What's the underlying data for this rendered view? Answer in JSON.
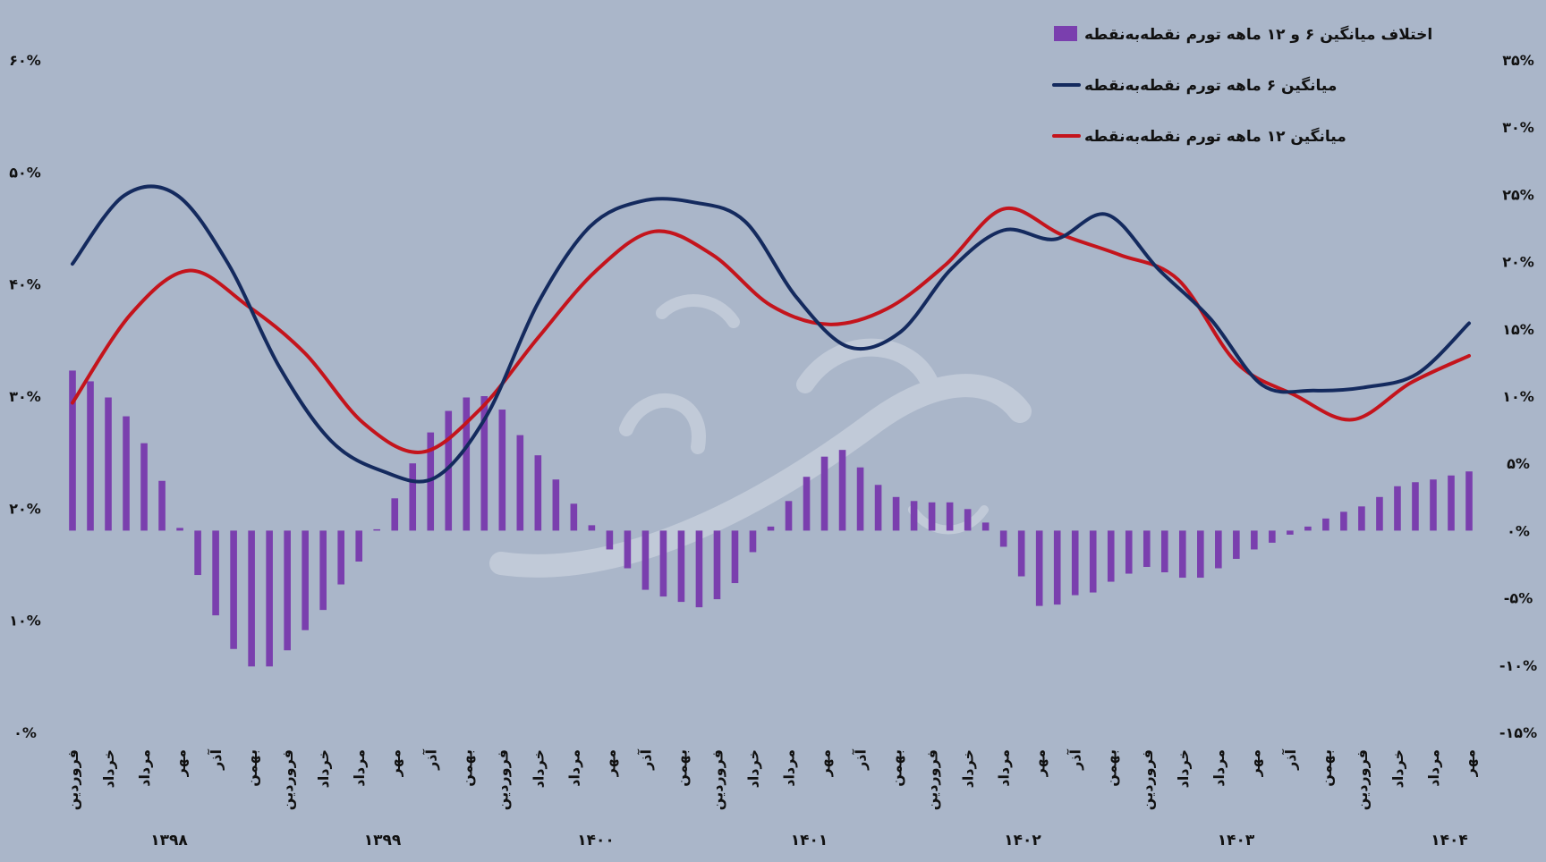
{
  "chart_data": {
    "type": "bar+line",
    "title": "",
    "legend_position": "top-right",
    "grid": false,
    "colors": {
      "background": "#aab6c9",
      "bar": "#7a3fae",
      "line_6m": "#142a5e",
      "line_12m": "#c4141c"
    },
    "legend": [
      {
        "key": "bar_diff",
        "label": "اختلاف میانگین ۶ و ۱۲ ماهه تورم نقطه‌به‌نقطه"
      },
      {
        "key": "line_6m",
        "label": "میانگین ۶ ماهه تورم نقطه‌به‌نقطه"
      },
      {
        "key": "line_12m",
        "label": "میانگین ۱۲ ماهه تورم نقطه‌به‌نقطه"
      }
    ],
    "left_axis": {
      "ticks": [
        "۰%",
        "۱۰%",
        "۲۰%",
        "۳۰%",
        "۴۰%",
        "۵۰%",
        "۶۰%"
      ],
      "range": [
        0,
        60
      ]
    },
    "right_axis": {
      "ticks": [
        "-۱۵%",
        "-۱۰%",
        "-۵%",
        "۰%",
        "۵%",
        "۱۰%",
        "۱۵%",
        "۲۰%",
        "۲۵%",
        "۳۰%",
        "۳۵%"
      ],
      "range": [
        -15,
        35
      ]
    },
    "month_labels": [
      "فروردین",
      "خرداد",
      "مرداد",
      "مهر",
      "آذر",
      "بهمن",
      "فروردین",
      "خرداد",
      "مرداد",
      "مهر",
      "آذر",
      "بهمن",
      "فروردین",
      "خرداد",
      "مرداد",
      "مهر",
      "آذر",
      "بهمن",
      "فروردین",
      "خرداد",
      "مرداد",
      "مهر",
      "آذر",
      "بهمن",
      "فروردین",
      "خرداد",
      "مرداد",
      "مهر",
      "آذر",
      "بهمن",
      "فروردین",
      "خرداد",
      "مرداد",
      "مهر",
      "آذر",
      "بهمن",
      "فروردین",
      "خرداد",
      "مرداد",
      "مهر"
    ],
    "year_labels": [
      "۱۳۹۸",
      "۱۳۹۹",
      "۱۴۰۰",
      "۱۴۰۱",
      "۱۴۰۲",
      "۱۴۰۳",
      "۱۴۰۴"
    ],
    "series": [
      {
        "name": "اختلاف میانگین ۶ و ۱۲ ماهه تورم نقطه‌به‌نقطه",
        "type": "bar",
        "axis": "right",
        "values": [
          11.9,
          11.1,
          9.9,
          8.5,
          6.5,
          3.7,
          0.2,
          -3.3,
          -6.3,
          -8.8,
          -10.1,
          -10.1,
          -8.9,
          -7.4,
          -5.9,
          -4.0,
          -2.3,
          0.1,
          2.4,
          5.0,
          7.3,
          8.9,
          9.9,
          10.0,
          9.0,
          7.1,
          5.6,
          3.8,
          2.0,
          0.4,
          -1.4,
          -2.8,
          -4.4,
          -4.9,
          -5.3,
          -5.7,
          -5.1,
          -3.9,
          -1.6,
          0.3,
          2.2,
          4.0,
          5.5,
          6.0,
          4.7,
          3.4,
          2.5,
          2.2,
          2.1,
          2.1,
          1.6,
          0.6,
          -1.2,
          -3.4,
          -5.6,
          -5.5,
          -4.8,
          -4.6,
          -3.8,
          -3.2,
          -2.7,
          -3.1,
          -3.5,
          -3.5,
          -2.8,
          -2.1,
          -1.4,
          -0.9,
          -0.3,
          0.3,
          0.9,
          1.4,
          1.8,
          2.5,
          3.3,
          3.6,
          3.8,
          4.1,
          4.4
        ]
      },
      {
        "name": "میانگین ۶ ماهه تورم نقطه‌به‌نقطه",
        "type": "line",
        "axis": "left",
        "values": [
          41.8,
          47.9,
          48.0,
          41.9,
          32.6,
          26.0,
          23.3,
          22.7,
          28.2,
          38.3,
          45.1,
          47.4,
          47.3,
          45.6,
          38.8,
          34.4,
          35.7,
          41.4,
          44.8,
          44.0,
          46.2,
          41.3,
          36.9,
          31.0,
          30.5,
          30.8,
          32.0,
          36.5
        ]
      },
      {
        "name": "میانگین ۱۲ ماهه تورم نقطه‌به‌نقطه",
        "type": "line",
        "axis": "left",
        "values": [
          29.4,
          37.3,
          41.2,
          38.1,
          33.8,
          27.6,
          25.0,
          28.8,
          35.2,
          41.2,
          44.7,
          42.6,
          38.1,
          36.4,
          37.8,
          41.7,
          46.7,
          44.4,
          42.6,
          40.4,
          33.0,
          30.1,
          27.9,
          31.2,
          33.6
        ]
      }
    ]
  }
}
